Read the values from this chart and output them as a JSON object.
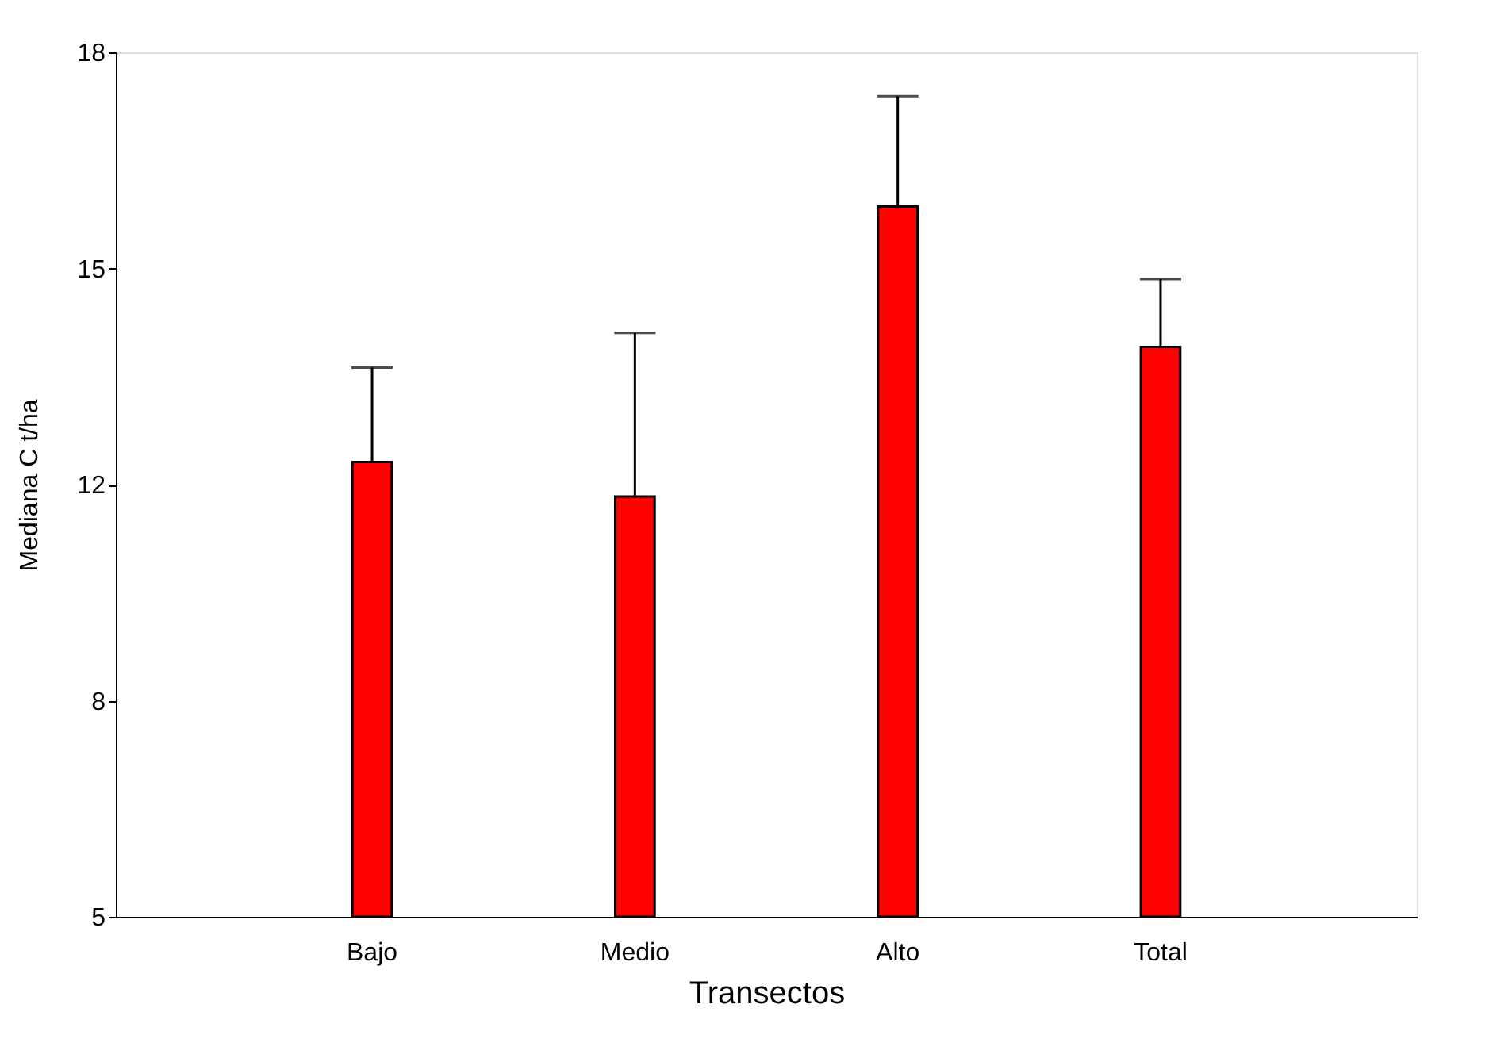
{
  "chart_data": {
    "type": "bar",
    "xlabel": "Transectos",
    "ylabel": "Mediana C t/ha",
    "categories": [
      "Bajo",
      "Medio",
      "Alto",
      "Total"
    ],
    "values": [
      11.84,
      11.32,
      15.68,
      13.57
    ],
    "errors": [
      [
        11.84,
        13.26
      ],
      [
        11.32,
        13.78
      ],
      [
        15.68,
        17.34
      ],
      [
        13.57,
        14.59
      ]
    ],
    "color": "#ff0000",
    "ylim": [
      5,
      18
    ],
    "yticks": [
      5,
      {
        "value": 8.25,
        "label": "8"
      },
      {
        "value": 11.5,
        "label": "12"
      },
      {
        "value": 14.75,
        "label": "15"
      },
      18
    ],
    "grid": false
  }
}
